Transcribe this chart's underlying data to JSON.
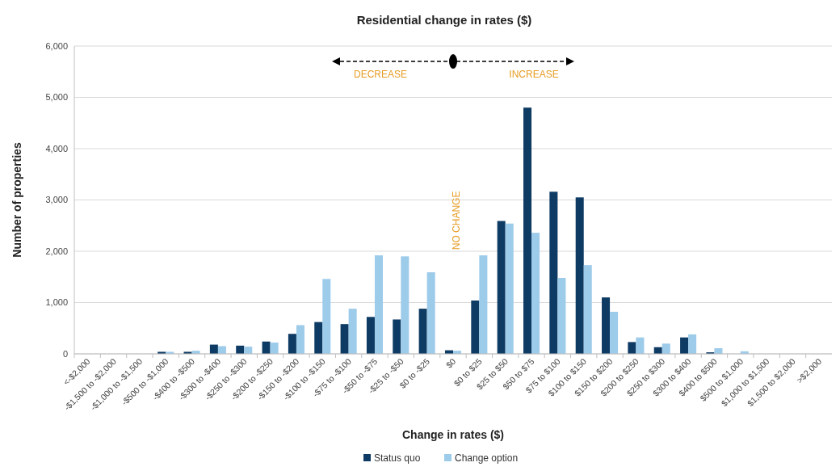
{
  "chart_data": {
    "type": "bar",
    "title": "Residential change in rates ($)",
    "xlabel": "Change in rates ($)",
    "ylabel": "Number of properties",
    "categories": [
      "<-$2,000",
      "-$1,500 to -$2,000",
      "-$1,000 to -$1,500",
      "-$500 to -$1,000",
      "-$400 to -$500",
      "-$300 to -$400",
      "-$250 to -$300",
      "-$200 to -$250",
      "-$150 to -$200",
      "-$100 to -$150",
      "-$75 to -$100",
      "-$50 to -$75",
      "-$25 to -$50",
      "$0 to -$25",
      "$0",
      "$0 to $25",
      "$25 to $50",
      "$50 to $75",
      "$75 to $100",
      "$100 to $150",
      "$150 to $200",
      "$200 to $250",
      "$250 to $300",
      "$300 to $400",
      "$400 to $500",
      "$500 to $1,000",
      "$1,000 to $1,500",
      "$1,500 to $2,000",
      ">$2,000"
    ],
    "series": [
      {
        "name": "Status quo",
        "color": "#0e3b63",
        "values": [
          0,
          0,
          null,
          40,
          40,
          180,
          160,
          240,
          390,
          620,
          580,
          720,
          670,
          880,
          70,
          1040,
          2590,
          4800,
          3160,
          3050,
          1100,
          230,
          130,
          320,
          30,
          null,
          0,
          0,
          0
        ]
      },
      {
        "name": "Change option",
        "color": "#9dcbea",
        "values": [
          0,
          0,
          null,
          40,
          60,
          150,
          140,
          220,
          560,
          1460,
          880,
          1920,
          1900,
          1590,
          60,
          1920,
          2540,
          2360,
          1480,
          1730,
          820,
          320,
          200,
          380,
          110,
          50,
          0,
          0,
          0
        ]
      }
    ],
    "ylim": [
      0,
      6000
    ],
    "yticks": [
      {
        "value": 0,
        "label": "0"
      },
      {
        "value": 1000,
        "label": "1,000"
      },
      {
        "value": 2000,
        "label": "2,000"
      },
      {
        "value": 3000,
        "label": "3,000"
      },
      {
        "value": 4000,
        "label": "4,000"
      },
      {
        "value": 5000,
        "label": "5,000"
      },
      {
        "value": 6000,
        "label": "6,000"
      }
    ],
    "grid": "y",
    "legend": "bottom",
    "annotations": [
      "DECREASE",
      "INCREASE",
      "NO CHANGE"
    ]
  }
}
